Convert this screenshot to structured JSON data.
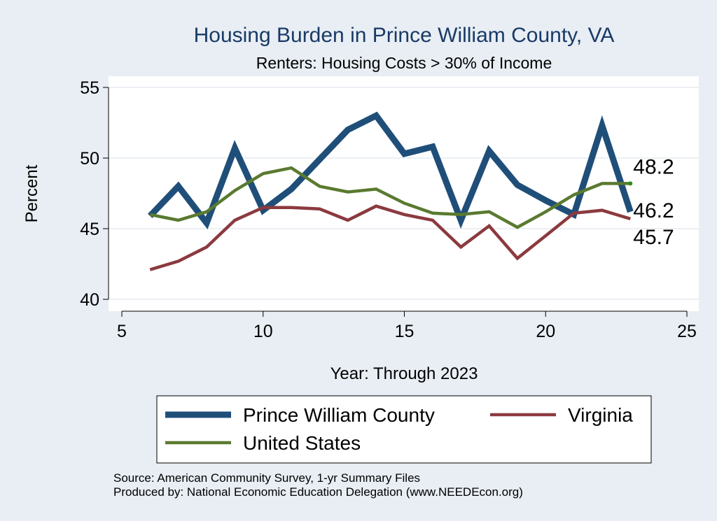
{
  "chart_data": {
    "type": "line",
    "title": "Housing Burden in Prince William County, VA",
    "subtitle": "Renters: Housing Costs > 30% of Income",
    "xlabel": "Year: Through 2023",
    "ylabel": "Percent",
    "xlim": [
      5,
      25
    ],
    "ylim": [
      40,
      55
    ],
    "xticks": [
      5,
      10,
      15,
      20,
      25
    ],
    "yticks": [
      40,
      45,
      50,
      55
    ],
    "grid": true,
    "legend_position": "bottom",
    "series": [
      {
        "name": "Prince William County",
        "color": "#1f4e79",
        "x": [
          6,
          7,
          8,
          9,
          10,
          11,
          12,
          13,
          14,
          15,
          16,
          17,
          18,
          19,
          20,
          21,
          22,
          23
        ],
        "values": [
          45.9,
          48.0,
          45.4,
          50.7,
          46.3,
          47.8,
          49.9,
          52.0,
          53.0,
          50.3,
          50.8,
          45.6,
          50.5,
          48.1,
          47.0,
          46.0,
          52.3,
          46.2
        ],
        "end_label": "46.2"
      },
      {
        "name": "Virginia",
        "color": "#8b3a3f",
        "x": [
          6,
          7,
          8,
          9,
          10,
          11,
          12,
          13,
          14,
          15,
          16,
          17,
          18,
          19,
          20,
          21,
          22,
          23
        ],
        "values": [
          42.1,
          42.7,
          43.7,
          45.6,
          46.5,
          46.5,
          46.4,
          45.6,
          46.6,
          46.0,
          45.6,
          43.7,
          45.2,
          42.9,
          44.5,
          46.1,
          46.3,
          45.7
        ],
        "end_label": "45.7"
      },
      {
        "name": "United States",
        "color": "#5a7a30",
        "x": [
          6,
          7,
          8,
          9,
          10,
          11,
          12,
          13,
          14,
          15,
          16,
          17,
          18,
          19,
          20,
          21,
          22,
          23
        ],
        "values": [
          46.0,
          45.6,
          46.2,
          47.7,
          48.9,
          49.3,
          48.0,
          47.6,
          47.8,
          46.8,
          46.1,
          46.0,
          46.2,
          45.1,
          46.2,
          47.4,
          48.2,
          48.2
        ],
        "end_label": "48.2"
      }
    ]
  },
  "notes": {
    "source": "Source: American Community Survey, 1-yr Summary Files",
    "producer": "Produced by: National Economic Education Delegation (www.NEEDEcon.org)"
  }
}
